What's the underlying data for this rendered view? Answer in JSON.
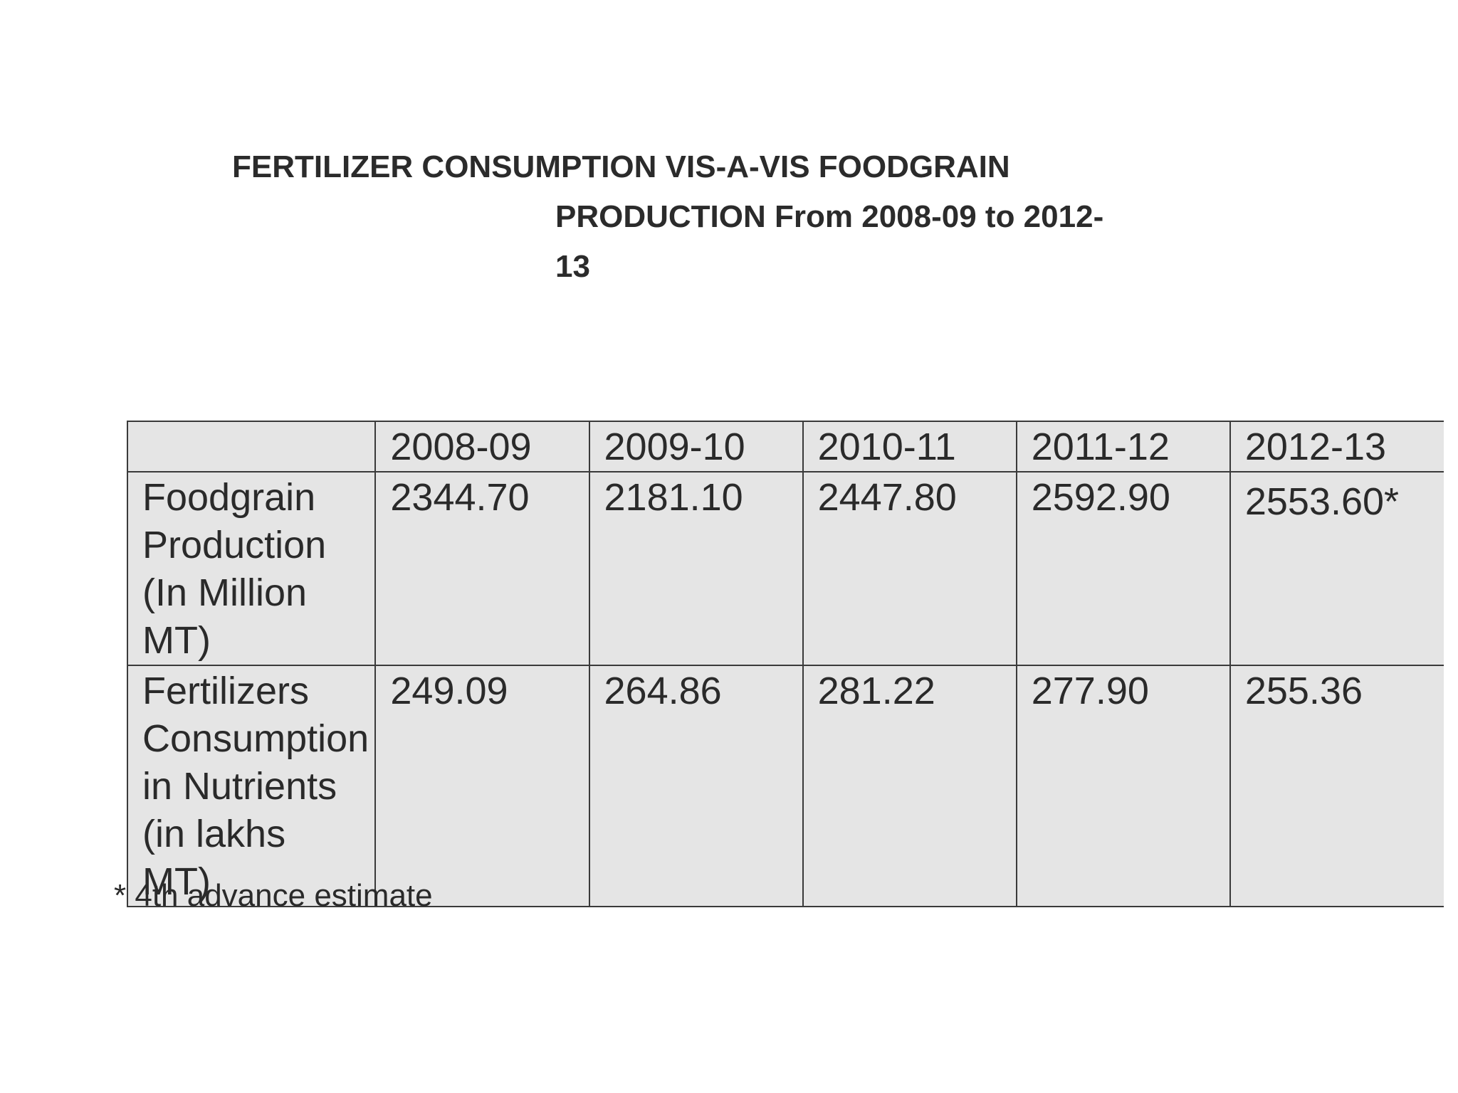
{
  "title": {
    "line1": "FERTILIZER CONSUMPTION VIS-A-VIS FOODGRAIN",
    "line2": "PRODUCTION From   2008-09 to 2012-",
    "line3": "13"
  },
  "table": {
    "header": [
      "",
      "2008-09",
      "2009-10",
      "2010-11",
      "2011-12",
      "2012-13"
    ],
    "rows": [
      {
        "label": "Foodgrain Production (In Million MT)",
        "values": [
          "2344.70",
          "2181.10",
          "2447.80",
          "2592.90",
          "2553.60*"
        ]
      },
      {
        "label": "Fertilizers Consumption in Nutrients (in lakhs MT)",
        "values": [
          "249.09",
          "264.86",
          "281.22",
          "277.90",
          "255.36"
        ]
      }
    ]
  },
  "footnote": "* 4th advance estimate"
}
